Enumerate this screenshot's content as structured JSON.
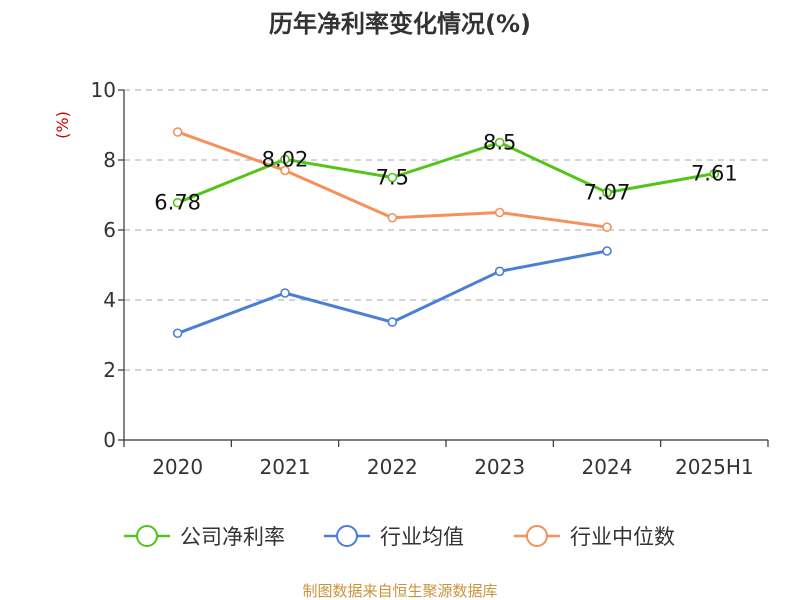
{
  "chart_data": {
    "type": "line",
    "title": "历年净利率变化情况(%)",
    "ylabel": "(%)",
    "xlabel": "",
    "categories": [
      "2020",
      "2021",
      "2022",
      "2023",
      "2024",
      "2025H1"
    ],
    "ylim": [
      0,
      10
    ],
    "yticks": [
      0,
      2,
      4,
      6,
      8,
      10
    ],
    "grid": true,
    "legend_position": "bottom",
    "series": [
      {
        "name": "公司净利率",
        "color": "#52c41a",
        "values": [
          6.78,
          8.02,
          7.5,
          8.5,
          7.07,
          7.61
        ],
        "labels": [
          "6.78",
          "8.02",
          "7.5",
          "8.5",
          "7.07",
          "7.61"
        ]
      },
      {
        "name": "行业均值",
        "color": "#4a7fd6",
        "values": [
          3.05,
          4.2,
          3.37,
          4.82,
          5.4,
          null
        ]
      },
      {
        "name": "行业中位数",
        "color": "#f5905a",
        "values": [
          8.8,
          7.7,
          6.35,
          6.5,
          6.08,
          null
        ]
      }
    ]
  },
  "source": "制图数据来自恒生聚源数据库"
}
